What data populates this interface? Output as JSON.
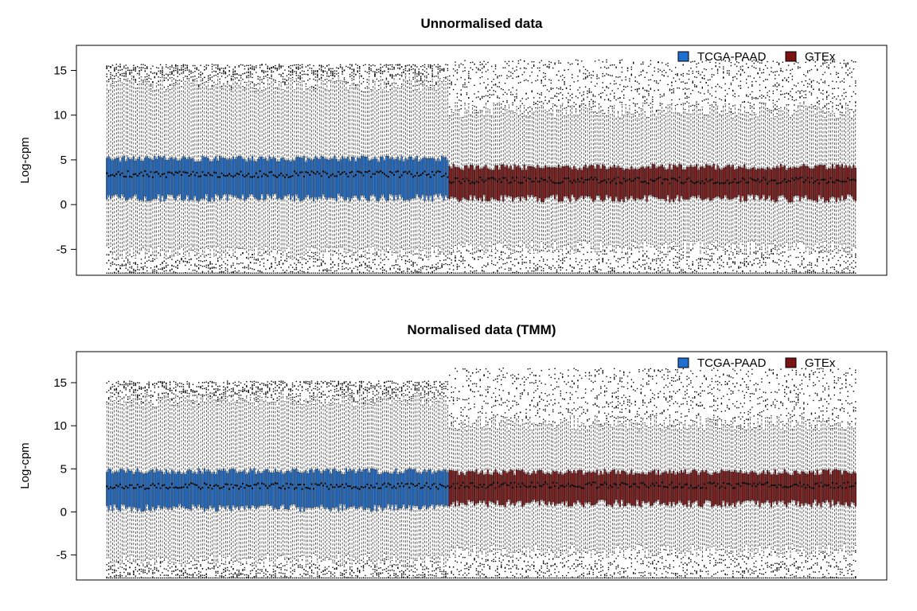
{
  "chart_data": [
    {
      "type": "boxplot",
      "title": "Unnormalised data",
      "ylabel": "Log-cpm",
      "xlabel": "",
      "ylim": [
        -7.9,
        17.8
      ],
      "yticks": [
        -5,
        0,
        5,
        10,
        15
      ],
      "ytick_labels": [
        "-5",
        "0",
        "5",
        "10",
        "15"
      ],
      "legend": {
        "placement": "top-right",
        "entries": [
          "TCGA-PAAD",
          "GTEx"
        ]
      },
      "series": [
        {
          "name": "TCGA-PAAD",
          "color": "#1E6FD0",
          "n_samples": 179,
          "median": 3.4,
          "q1": 0.8,
          "q3": 5.1,
          "whisker_low": -5.4,
          "whisker_high": 13.5,
          "outlier_max": 15.5,
          "outlier_min": -7.6
        },
        {
          "name": "GTEx",
          "color": "#7A1414",
          "n_samples": 213,
          "median": 2.7,
          "q1": 0.7,
          "q3": 4.2,
          "whisker_low": -4.8,
          "whisker_high": 10.5,
          "outlier_max": 16.0,
          "outlier_min": -7.6
        }
      ]
    },
    {
      "type": "boxplot",
      "title": "Normalised data (TMM)",
      "ylabel": "Log-cpm",
      "xlabel": "",
      "ylim": [
        -7.9,
        18.6
      ],
      "yticks": [
        -5,
        0,
        5,
        10,
        15
      ],
      "ytick_labels": [
        "-5",
        "0",
        "5",
        "10",
        "15"
      ],
      "legend": {
        "placement": "top-right",
        "entries": [
          "TCGA-PAAD",
          "GTEx"
        ]
      },
      "series": [
        {
          "name": "TCGA-PAAD",
          "color": "#1E6FD0",
          "n_samples": 179,
          "median": 3.0,
          "q1": 0.5,
          "q3": 4.7,
          "whisker_low": -5.6,
          "whisker_high": 13.0,
          "outlier_max": 15.0,
          "outlier_min": -7.6
        },
        {
          "name": "GTEx",
          "color": "#7A1414",
          "n_samples": 213,
          "median": 3.1,
          "q1": 1.0,
          "q3": 4.6,
          "whisker_low": -4.5,
          "whisker_high": 10.3,
          "outlier_max": 16.5,
          "outlier_min": -7.6
        }
      ]
    }
  ]
}
